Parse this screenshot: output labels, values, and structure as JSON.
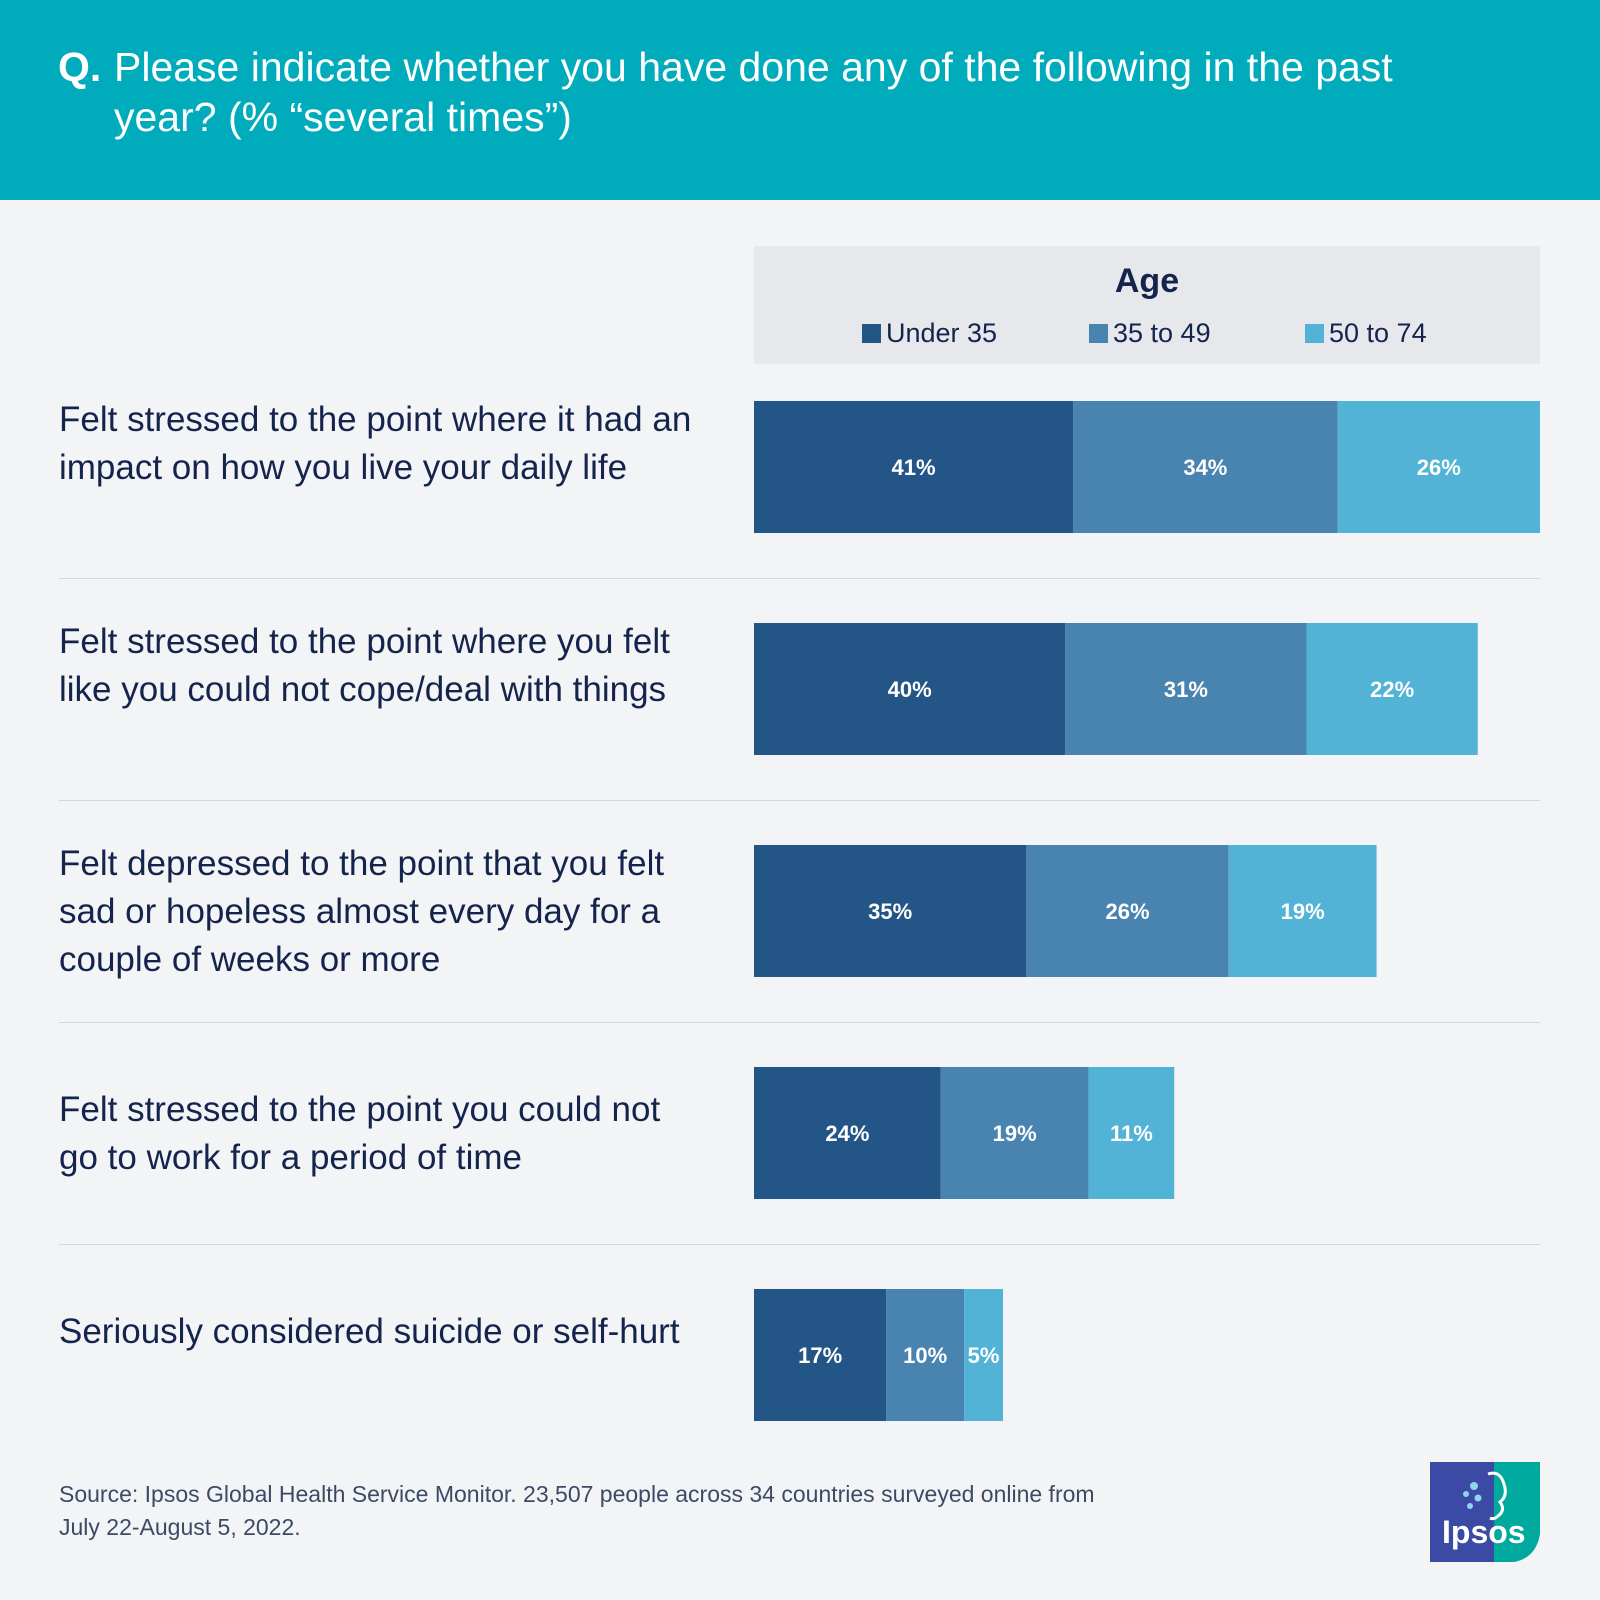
{
  "header": {
    "prefix": "Q.",
    "question": "Please indicate whether you have done any of the following in the past year? (% “several times”)"
  },
  "legend": {
    "title": "Age",
    "items": [
      {
        "label": "Under 35",
        "color": "#245587"
      },
      {
        "label": "35 to 49",
        "color": "#4983b0"
      },
      {
        "label": "50 to 74",
        "color": "#52b3d6"
      }
    ]
  },
  "chart_data": {
    "type": "bar",
    "orientation": "horizontal",
    "stacked": true,
    "categories": [
      "Felt stressed to the point where it had an impact on how you live your daily life",
      "Felt stressed to the point where you felt like you could not cope/deal with things",
      "Felt depressed to the point that you felt sad or hopeless almost every day for a couple of weeks or more",
      "Felt stressed to the point you could not go to work for a period of time",
      "Seriously considered suicide or self-hurt"
    ],
    "series": [
      {
        "name": "Under 35",
        "values": [
          41,
          40,
          35,
          24,
          17
        ],
        "labels": [
          "41%",
          "40%",
          "35%",
          "24%",
          "17%"
        ]
      },
      {
        "name": "35 to 49",
        "values": [
          34,
          31,
          26,
          19,
          10
        ],
        "labels": [
          "34%",
          "31%",
          "26%",
          "19%",
          "10%"
        ]
      },
      {
        "name": "50 to 74",
        "values": [
          26,
          22,
          19,
          11,
          5
        ],
        "labels": [
          "26%",
          "22%",
          "19%",
          "11%",
          "5%"
        ]
      }
    ],
    "title": "Please indicate whether you have done any of the following in the past year? (% “several times”)",
    "legend_title": "Age",
    "xlim": [
      0,
      101
    ],
    "grid": false,
    "legend_position": "top"
  },
  "rows": [
    {
      "label": "Felt stressed to the point where it had an impact on how you live your daily life"
    },
    {
      "label": "Felt stressed to the point where you felt like you could not cope/deal with things"
    },
    {
      "label": "Felt depressed to the point that you felt sad or hopeless almost every day for a couple of weeks or more"
    },
    {
      "label": "Felt stressed to the point you could not go to work for a period of time"
    },
    {
      "label": "Seriously considered suicide or self-hurt"
    }
  ],
  "source": "Source: Ipsos Global Health Service Monitor. 23,507 people across 34 countries surveyed online from July 22-August 5, 2022.",
  "logo": {
    "text": "Ipsos",
    "colors": {
      "blue": "#3b4aa5",
      "teal": "#00a99d"
    }
  }
}
